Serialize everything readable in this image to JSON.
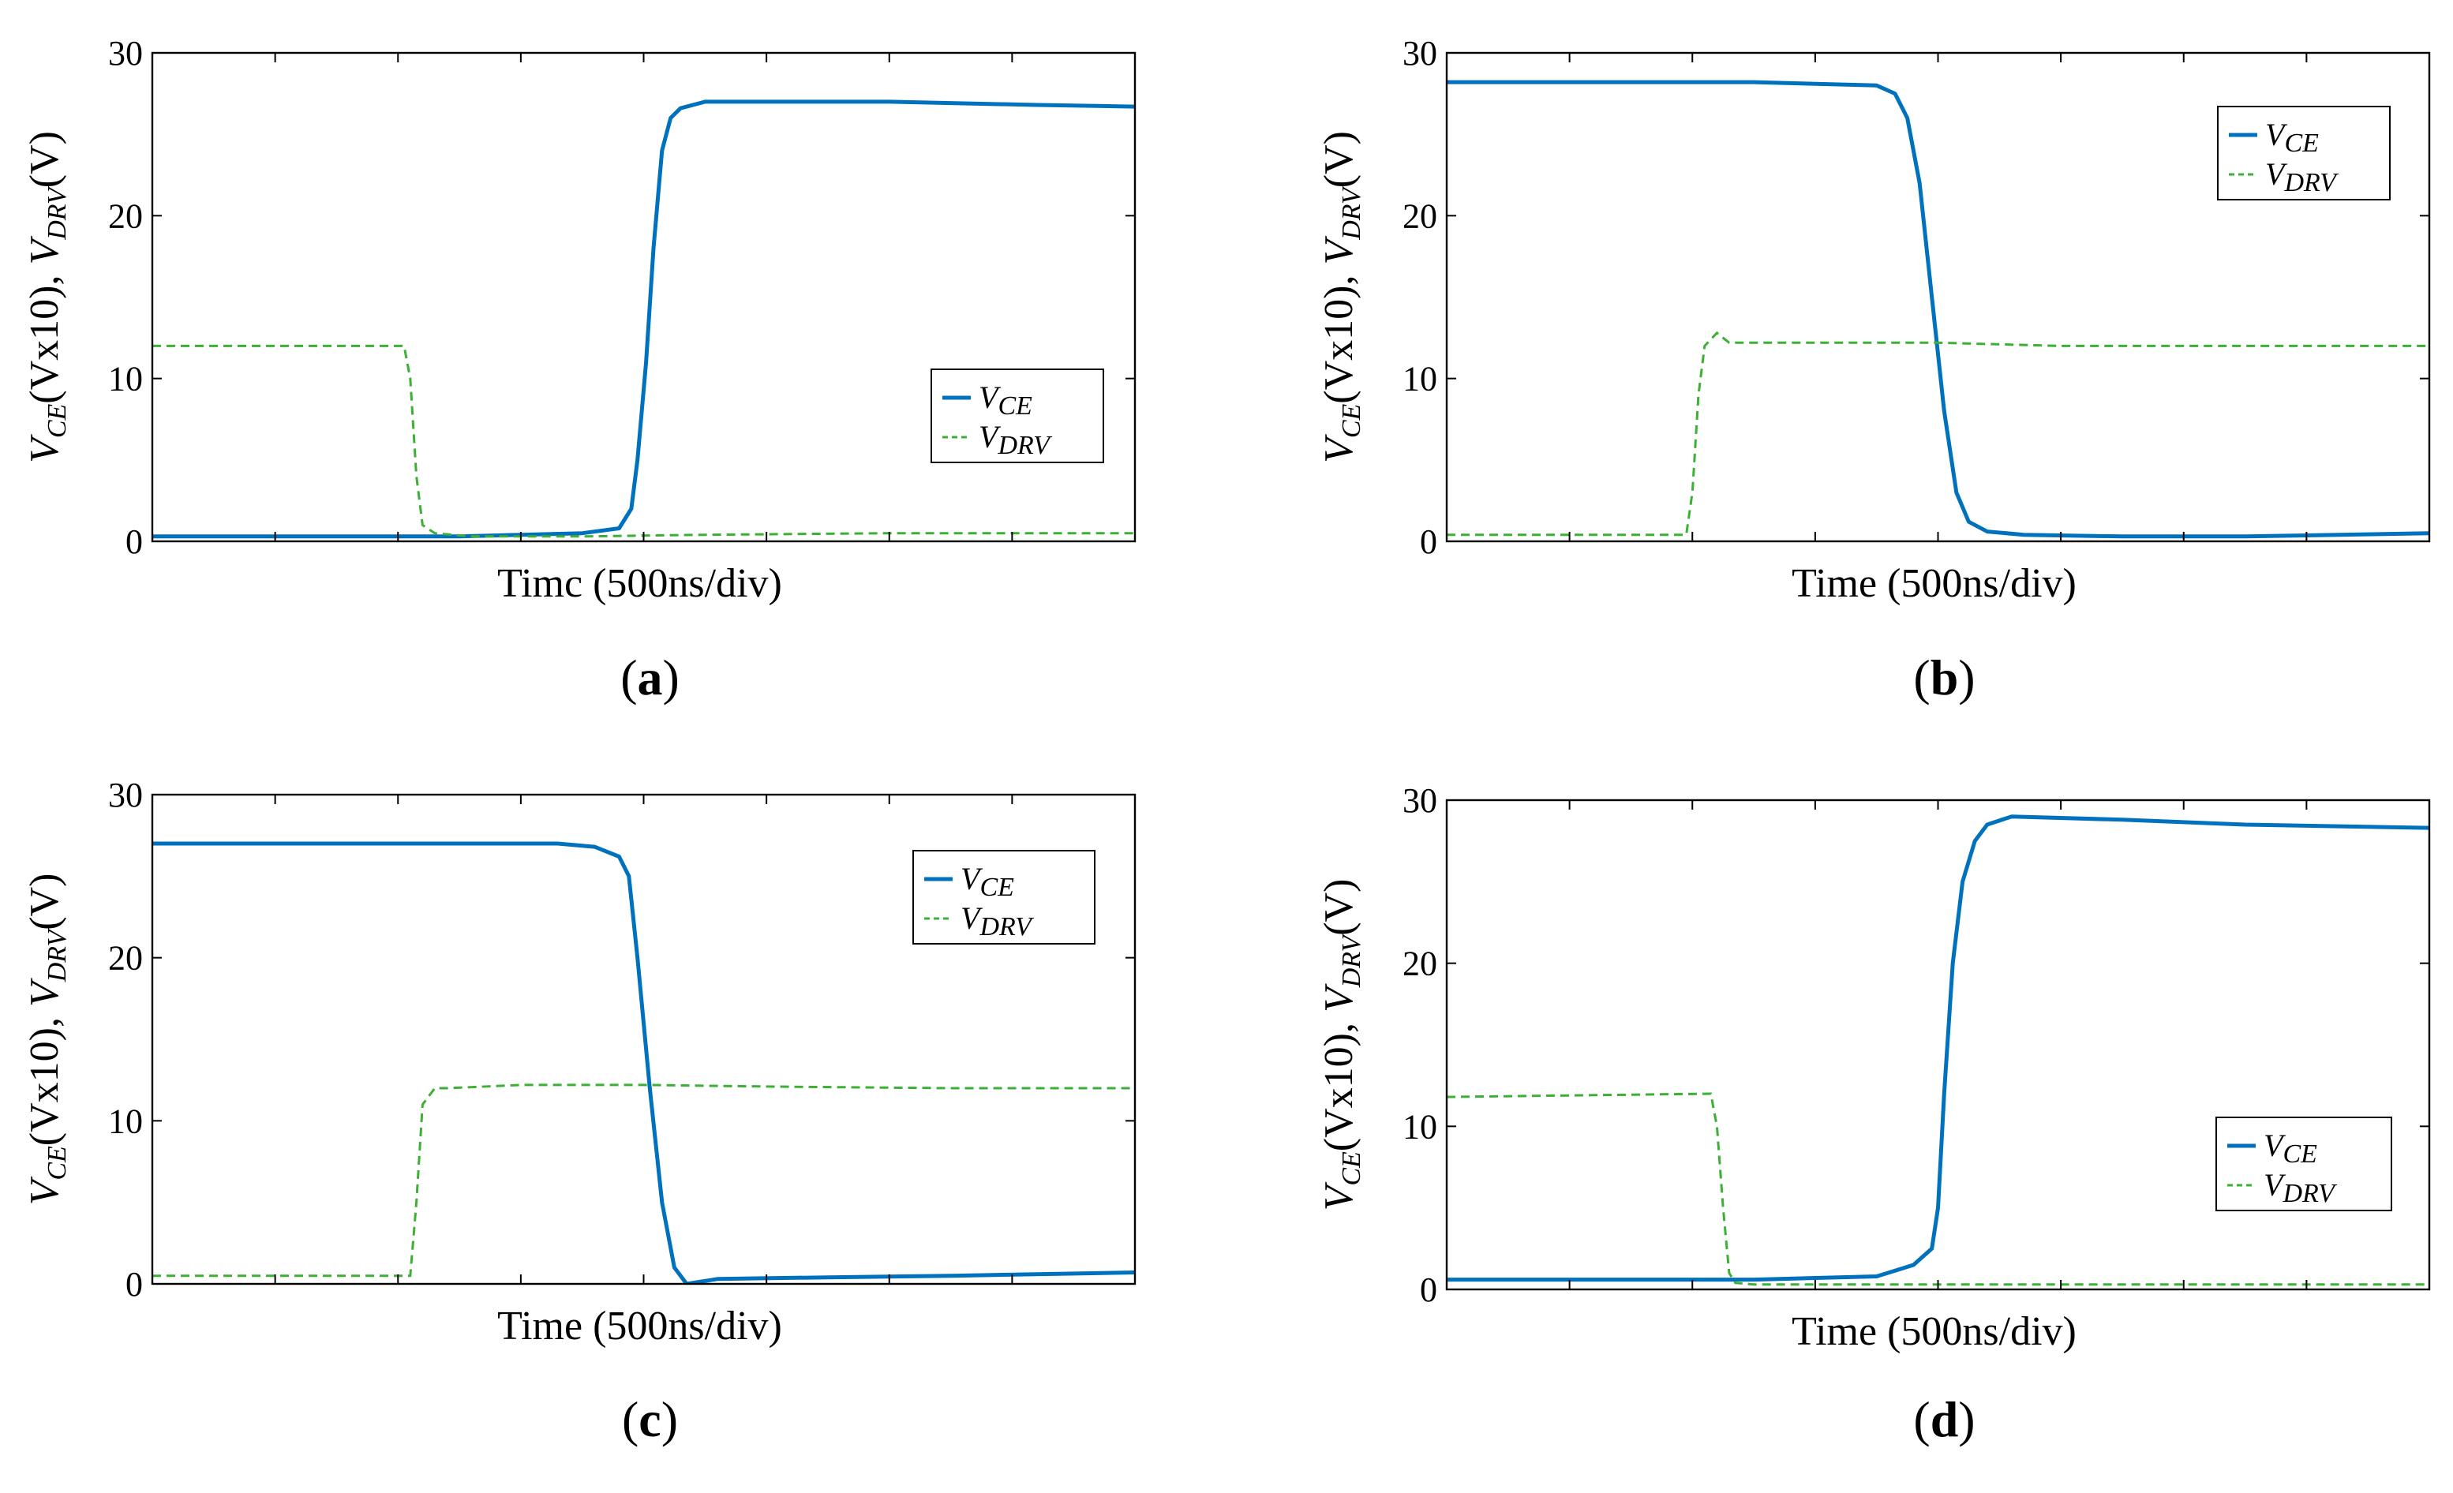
{
  "figure": {
    "series_colors": {
      "VCE": "#0072BD",
      "VDRV": "#3CB034"
    }
  },
  "chart_data": [
    {
      "id": "a",
      "type": "line",
      "caption_letter": "a",
      "xlabel": "Timc (500ns/div)",
      "ylabel": "VCE(Vx10), VDRV(V)",
      "ylabel_parts": {
        "v1": "V",
        "sub1": "CE",
        "mid": "(Vx10), ",
        "v2": "V",
        "sub2": "DRV",
        "end": "(V)"
      },
      "ylim": [
        0,
        30
      ],
      "yticks": [
        "0",
        "10",
        "20",
        "30"
      ],
      "xlim": [
        0,
        8
      ],
      "x_divisions": 8,
      "legend": {
        "position": "center-right",
        "entries": [
          {
            "v": "V",
            "sub": "CE"
          },
          {
            "v": "V",
            "sub": "DRV"
          }
        ]
      },
      "series": [
        {
          "name": "VCE",
          "style": "solid",
          "x": [
            0,
            2.5,
            3.5,
            3.8,
            3.9,
            3.95,
            4.02,
            4.08,
            4.15,
            4.22,
            4.3,
            4.5,
            5.2,
            6.0,
            7.2,
            8.0
          ],
          "y": [
            0.3,
            0.3,
            0.5,
            0.8,
            2.0,
            5.0,
            11.0,
            18.0,
            24.0,
            26.0,
            26.6,
            27.0,
            27.0,
            27.0,
            26.8,
            26.7
          ]
        },
        {
          "name": "VDRV",
          "style": "dashed",
          "x": [
            0,
            2.05,
            2.1,
            2.15,
            2.2,
            2.3,
            2.6,
            3.5,
            4.5,
            6.0,
            8.0
          ],
          "y": [
            12.0,
            12.0,
            10.0,
            4.0,
            1.0,
            0.5,
            0.3,
            0.3,
            0.4,
            0.5,
            0.5
          ]
        }
      ]
    },
    {
      "id": "b",
      "type": "line",
      "caption_letter": "b",
      "xlabel": "Time (500ns/div)",
      "ylabel": "VCE(Vx10), VDRV(V)",
      "ylabel_parts": {
        "v1": "V",
        "sub1": "CE",
        "mid": "(Vx10), ",
        "v2": "V",
        "sub2": "DRV",
        "end": "(V)"
      },
      "ylim": [
        0,
        30
      ],
      "yticks": [
        "0",
        "10",
        "20",
        "30"
      ],
      "xlim": [
        0,
        8
      ],
      "x_divisions": 8,
      "legend": {
        "position": "top-right",
        "entries": [
          {
            "v": "V",
            "sub": "CE"
          },
          {
            "v": "V",
            "sub": "DRV"
          }
        ]
      },
      "series": [
        {
          "name": "VCE",
          "style": "solid",
          "x": [
            0,
            2.5,
            3.5,
            3.65,
            3.75,
            3.85,
            3.95,
            4.05,
            4.15,
            4.25,
            4.4,
            4.7,
            5.5,
            6.5,
            8.0
          ],
          "y": [
            28.2,
            28.2,
            28.0,
            27.5,
            26.0,
            22.0,
            15.0,
            8.0,
            3.0,
            1.2,
            0.6,
            0.4,
            0.3,
            0.3,
            0.5
          ]
        },
        {
          "name": "VDRV",
          "style": "dashed",
          "x": [
            0,
            1.95,
            2.0,
            2.05,
            2.1,
            2.2,
            2.3,
            3.0,
            4.0,
            5.0,
            8.0
          ],
          "y": [
            0.4,
            0.4,
            3.0,
            9.0,
            12.0,
            12.8,
            12.2,
            12.2,
            12.2,
            12.0,
            12.0
          ]
        }
      ]
    },
    {
      "id": "c",
      "type": "line",
      "caption_letter": "c",
      "xlabel": "Time (500ns/div)",
      "ylabel": "VCE(Vx10), VDRV(V)",
      "ylabel_parts": {
        "v1": "V",
        "sub1": "CE",
        "mid": "(Vx10), ",
        "v2": "V",
        "sub2": "DRV",
        "end": "(V)"
      },
      "ylim": [
        0,
        30
      ],
      "yticks": [
        "0",
        "10",
        "20",
        "30"
      ],
      "xlim": [
        0,
        8
      ],
      "x_divisions": 8,
      "legend": {
        "position": "top-right",
        "entries": [
          {
            "v": "V",
            "sub": "CE"
          },
          {
            "v": "V",
            "sub": "DRV"
          }
        ]
      },
      "series": [
        {
          "name": "VCE",
          "style": "solid",
          "x": [
            0,
            2.5,
            3.3,
            3.6,
            3.8,
            3.88,
            3.95,
            4.05,
            4.15,
            4.25,
            4.35,
            4.6,
            5.5,
            6.5,
            8.0
          ],
          "y": [
            27.0,
            27.0,
            27.0,
            26.8,
            26.2,
            25.0,
            20.0,
            12.0,
            5.0,
            1.0,
            0.0,
            0.3,
            0.4,
            0.5,
            0.7
          ]
        },
        {
          "name": "VDRV",
          "style": "dashed",
          "x": [
            0,
            2.1,
            2.15,
            2.2,
            2.3,
            2.4,
            3.0,
            4.0,
            5.0,
            6.5,
            8.0
          ],
          "y": [
            0.5,
            0.5,
            5.0,
            11.0,
            12.0,
            12.0,
            12.2,
            12.2,
            12.1,
            12.0,
            12.0
          ]
        }
      ]
    },
    {
      "id": "d",
      "type": "line",
      "caption_letter": "d",
      "xlabel": "Time (500ns/div)",
      "ylabel": "VCE(Vx10), VDRV(V)",
      "ylabel_parts": {
        "v1": "V",
        "sub1": "CE",
        "mid": "(Vx10), ",
        "v2": "V",
        "sub2": "DRV",
        "end": "(V)"
      },
      "ylim": [
        0,
        30
      ],
      "yticks": [
        "0",
        "10",
        "20",
        "30"
      ],
      "xlim": [
        0,
        8
      ],
      "x_divisions": 8,
      "legend": {
        "position": "bottom-right",
        "entries": [
          {
            "v": "V",
            "sub": "CE"
          },
          {
            "v": "V",
            "sub": "DRV"
          }
        ]
      },
      "series": [
        {
          "name": "VCE",
          "style": "solid",
          "x": [
            0,
            2.5,
            3.5,
            3.8,
            3.95,
            4.0,
            4.05,
            4.12,
            4.2,
            4.3,
            4.4,
            4.6,
            5.5,
            6.5,
            8.0
          ],
          "y": [
            0.6,
            0.6,
            0.8,
            1.5,
            2.5,
            5.0,
            12.0,
            20.0,
            25.0,
            27.5,
            28.5,
            29.0,
            28.8,
            28.5,
            28.3
          ]
        },
        {
          "name": "VDRV",
          "style": "dashed",
          "x": [
            0,
            2.15,
            2.2,
            2.25,
            2.3,
            2.35,
            2.5,
            3.5,
            5.0,
            8.0
          ],
          "y": [
            11.8,
            12.0,
            10.0,
            5.0,
            1.0,
            0.4,
            0.3,
            0.3,
            0.3,
            0.3
          ]
        }
      ]
    }
  ]
}
